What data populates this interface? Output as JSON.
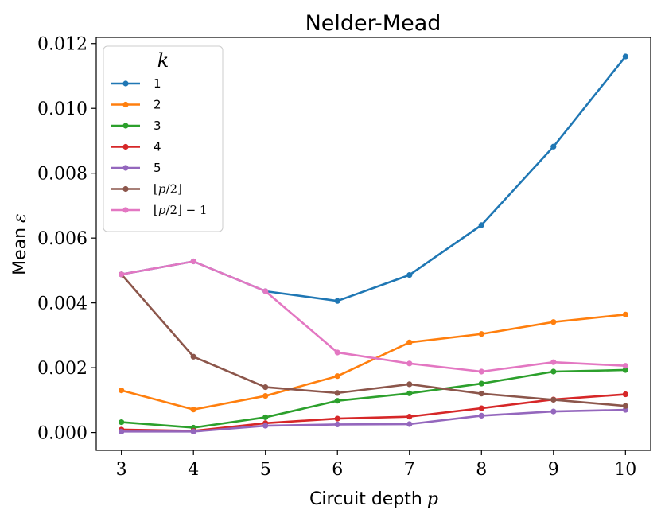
{
  "chart_data": {
    "type": "line",
    "title": "Nelder-Mead",
    "xlabel": "Circuit depth",
    "xlabel_var": "p",
    "ylabel": "Mean",
    "ylabel_var": "ε",
    "x": [
      3,
      4,
      5,
      6,
      7,
      8,
      9,
      10
    ],
    "xlim": [
      2.65,
      10.35
    ],
    "ylim": [
      -0.00055,
      0.01219
    ],
    "x_ticks": [
      3,
      4,
      5,
      6,
      7,
      8,
      9,
      10
    ],
    "y_ticks": [
      0.0,
      0.002,
      0.004,
      0.006,
      0.008,
      0.01,
      0.012
    ],
    "y_tick_labels": [
      "0.000",
      "0.002",
      "0.004",
      "0.006",
      "0.008",
      "0.010",
      "0.012"
    ],
    "grid": false,
    "legend_title": "k",
    "legend_position": "top-left",
    "series": [
      {
        "name": "1",
        "color": "#1f77b4",
        "values": [
          0.00488,
          0.00528,
          0.00436,
          0.00406,
          0.00486,
          0.0064,
          0.00882,
          0.0116
        ]
      },
      {
        "name": "2",
        "color": "#ff7f0e",
        "values": [
          0.0013,
          0.00071,
          0.00113,
          0.00174,
          0.00278,
          0.00304,
          0.00341,
          0.00364
        ]
      },
      {
        "name": "3",
        "color": "#2ca02c",
        "values": [
          0.00032,
          0.00015,
          0.00047,
          0.00098,
          0.00121,
          0.00151,
          0.00188,
          0.00193
        ]
      },
      {
        "name": "4",
        "color": "#d62728",
        "values": [
          9e-05,
          5e-05,
          0.00029,
          0.00043,
          0.00049,
          0.00075,
          0.00102,
          0.00118
        ]
      },
      {
        "name": "5",
        "color": "#9467bd",
        "values": [
          3e-05,
          3e-05,
          0.00021,
          0.00025,
          0.00026,
          0.00052,
          0.00065,
          0.0007
        ]
      },
      {
        "name": "⌊p/2⌋",
        "color": "#8c564b",
        "values": [
          0.00488,
          0.00234,
          0.0014,
          0.00122,
          0.00149,
          0.0012,
          0.00101,
          0.00082
        ]
      },
      {
        "name": "⌊p/2⌋ − 1",
        "color": "#e377c2",
        "values": [
          0.00488,
          0.00528,
          0.00436,
          0.00247,
          0.00213,
          0.00188,
          0.00217,
          0.00206
        ]
      }
    ]
  }
}
